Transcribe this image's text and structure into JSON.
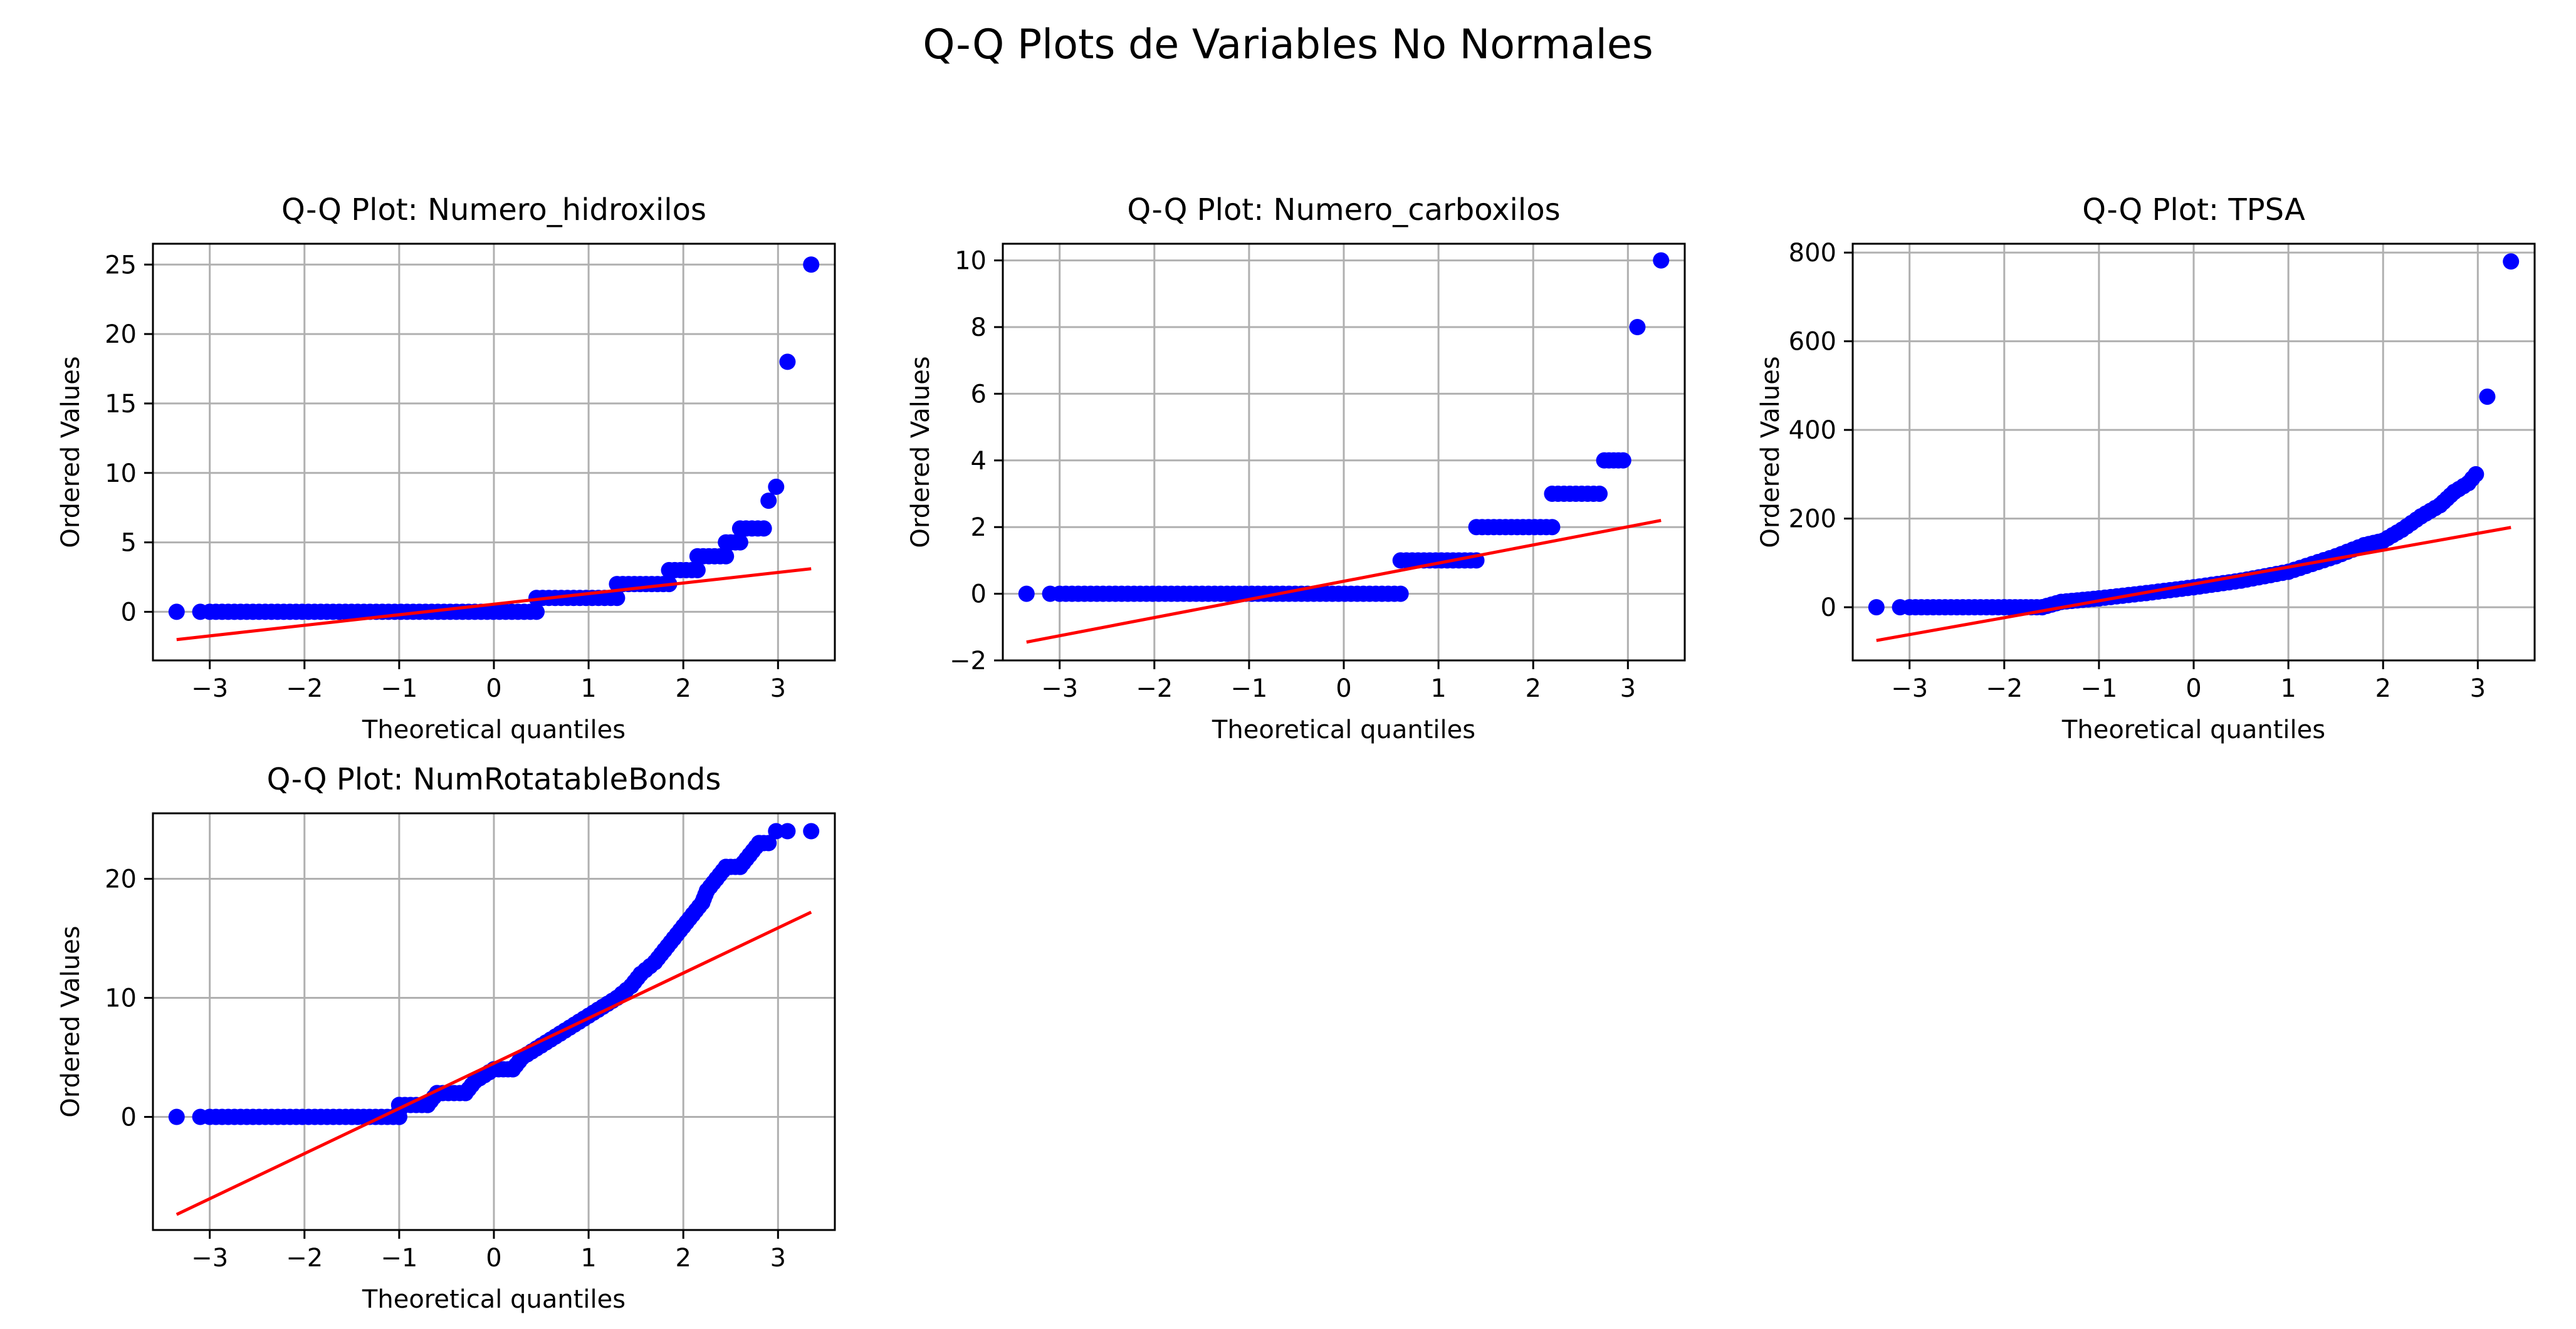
{
  "figure": {
    "suptitle": "Q-Q Plots de Variables No Normales"
  },
  "colors": {
    "points": "#0000ff",
    "fit_line": "#ff0000",
    "grid": "#b0b0b0",
    "axes": "#000000",
    "background": "#ffffff"
  },
  "chart_data": [
    {
      "type": "scatter",
      "title": "Q-Q Plot: Numero_hidroxilos",
      "xlabel": "Theoretical quantiles",
      "ylabel": "Ordered Values",
      "xlim": [
        -3.6,
        3.6
      ],
      "ylim": [
        -3.5,
        26.5
      ],
      "xticks": [
        -3,
        -2,
        -1,
        0,
        1,
        2,
        3
      ],
      "yticks": [
        0,
        5,
        10,
        15,
        20,
        25
      ],
      "grid": true,
      "fit_line": {
        "x": [
          -3.35,
          3.35
        ],
        "y": [
          -2.0,
          3.1
        ]
      },
      "steps": [
        {
          "x0": -3.0,
          "x1": 0.45,
          "y": 0
        },
        {
          "x0": 0.45,
          "x1": 1.3,
          "y": 1
        },
        {
          "x0": 1.3,
          "x1": 1.85,
          "y": 2
        },
        {
          "x0": 1.85,
          "x1": 2.15,
          "y": 3
        },
        {
          "x0": 2.15,
          "x1": 2.45,
          "y": 4
        },
        {
          "x0": 2.45,
          "x1": 2.6,
          "y": 5
        },
        {
          "x0": 2.6,
          "x1": 2.85,
          "y": 6
        }
      ],
      "points": [
        {
          "x": -3.35,
          "y": 0
        },
        {
          "x": -3.1,
          "y": 0
        },
        {
          "x": 2.9,
          "y": 8
        },
        {
          "x": 2.98,
          "y": 9
        },
        {
          "x": 3.1,
          "y": 18
        },
        {
          "x": 3.35,
          "y": 25
        }
      ]
    },
    {
      "type": "scatter",
      "title": "Q-Q Plot: Numero_carboxilos",
      "xlabel": "Theoretical quantiles",
      "ylabel": "Ordered Values",
      "xlim": [
        -3.6,
        3.6
      ],
      "ylim": [
        -2.0,
        10.5
      ],
      "xticks": [
        -3,
        -2,
        -1,
        0,
        1,
        2,
        3
      ],
      "yticks": [
        -2,
        0,
        2,
        4,
        6,
        8,
        10
      ],
      "grid": true,
      "fit_line": {
        "x": [
          -3.35,
          3.35
        ],
        "y": [
          -1.45,
          2.2
        ]
      },
      "steps": [
        {
          "x0": -3.0,
          "x1": 0.6,
          "y": 0
        },
        {
          "x0": 0.6,
          "x1": 1.4,
          "y": 1
        },
        {
          "x0": 1.4,
          "x1": 2.2,
          "y": 2
        },
        {
          "x0": 2.2,
          "x1": 2.7,
          "y": 3
        },
        {
          "x0": 2.75,
          "x1": 2.95,
          "y": 4
        }
      ],
      "points": [
        {
          "x": -3.35,
          "y": 0
        },
        {
          "x": -3.1,
          "y": 0
        },
        {
          "x": 3.1,
          "y": 8
        },
        {
          "x": 3.35,
          "y": 10
        }
      ]
    },
    {
      "type": "scatter",
      "title": "Q-Q Plot: TPSA",
      "xlabel": "Theoretical quantiles",
      "ylabel": "Ordered Values",
      "xlim": [
        -3.6,
        3.6
      ],
      "ylim": [
        -120,
        820
      ],
      "xticks": [
        -3,
        -2,
        -1,
        0,
        1,
        2,
        3
      ],
      "yticks": [
        0,
        200,
        400,
        600,
        800
      ],
      "grid": true,
      "fit_line": {
        "x": [
          -3.35,
          3.35
        ],
        "y": [
          -75,
          180
        ]
      },
      "curve": [
        [
          -3.0,
          0
        ],
        [
          -2.0,
          0
        ],
        [
          -1.6,
          0
        ],
        [
          -1.4,
          12
        ],
        [
          -1.0,
          20
        ],
        [
          -0.5,
          32
        ],
        [
          0.0,
          45
        ],
        [
          0.5,
          60
        ],
        [
          1.0,
          80
        ],
        [
          1.5,
          115
        ],
        [
          1.8,
          140
        ],
        [
          2.0,
          150
        ],
        [
          2.2,
          175
        ],
        [
          2.4,
          205
        ],
        [
          2.6,
          230
        ],
        [
          2.75,
          260
        ],
        [
          2.9,
          280
        ],
        [
          2.98,
          300
        ]
      ],
      "points": [
        {
          "x": -3.35,
          "y": 0
        },
        {
          "x": -3.1,
          "y": 0
        },
        {
          "x": 3.1,
          "y": 475
        },
        {
          "x": 3.35,
          "y": 780
        }
      ]
    },
    {
      "type": "scatter",
      "title": "Q-Q Plot: NumRotatableBonds",
      "xlabel": "Theoretical quantiles",
      "ylabel": "Ordered Values",
      "xlim": [
        -3.6,
        3.6
      ],
      "ylim": [
        -9.5,
        25.5
      ],
      "xticks": [
        -3,
        -2,
        -1,
        0,
        1,
        2,
        3
      ],
      "yticks": [
        0,
        10,
        20
      ],
      "grid": true,
      "fit_line": {
        "x": [
          -3.35,
          3.35
        ],
        "y": [
          -8.2,
          17.2
        ]
      },
      "curve": [
        [
          -3.0,
          0
        ],
        [
          -1.5,
          0
        ],
        [
          -1.0,
          0
        ],
        [
          -1.0,
          1
        ],
        [
          -0.7,
          1
        ],
        [
          -0.6,
          2
        ],
        [
          -0.3,
          2
        ],
        [
          -0.2,
          3
        ],
        [
          0.0,
          4
        ],
        [
          0.2,
          4
        ],
        [
          0.3,
          5
        ],
        [
          0.5,
          6
        ],
        [
          0.7,
          7
        ],
        [
          0.9,
          8
        ],
        [
          1.1,
          9
        ],
        [
          1.3,
          10
        ],
        [
          1.45,
          11
        ],
        [
          1.55,
          12
        ],
        [
          1.7,
          13
        ],
        [
          1.8,
          14
        ],
        [
          1.9,
          15
        ],
        [
          2.0,
          16
        ],
        [
          2.1,
          17
        ],
        [
          2.2,
          18
        ],
        [
          2.25,
          19
        ],
        [
          2.35,
          20
        ],
        [
          2.45,
          21
        ],
        [
          2.6,
          21
        ],
        [
          2.7,
          22
        ],
        [
          2.8,
          23
        ],
        [
          2.9,
          23
        ]
      ],
      "points": [
        {
          "x": -3.35,
          "y": 0
        },
        {
          "x": -3.1,
          "y": 0
        },
        {
          "x": 2.98,
          "y": 24
        },
        {
          "x": 3.1,
          "y": 24
        },
        {
          "x": 3.35,
          "y": 24
        }
      ]
    }
  ]
}
